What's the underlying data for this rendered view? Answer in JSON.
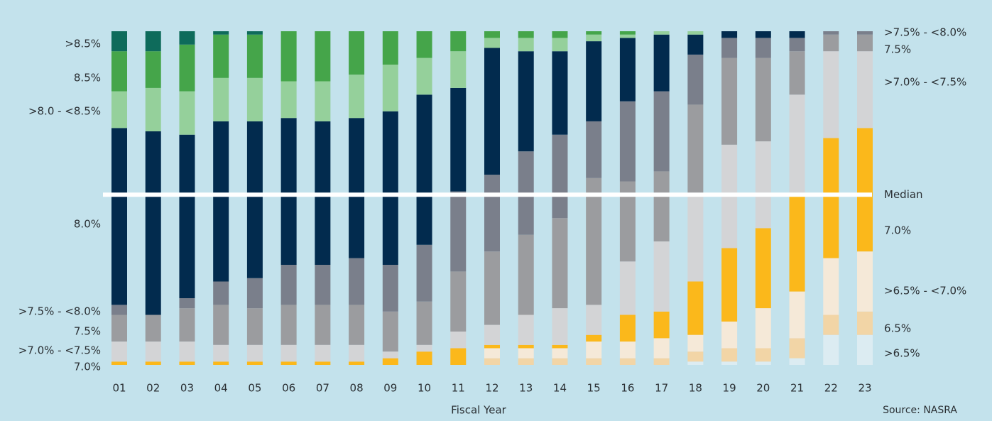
{
  "chart_data": {
    "type": "stacked_bar",
    "x_label": "Fiscal Year",
    "source": "Source: NASRA",
    "categories": [
      "01",
      "02",
      "03",
      "04",
      "05",
      "06",
      "07",
      "08",
      "09",
      "10",
      "11",
      "12",
      "13",
      "14",
      "15",
      "16",
      "17",
      "18",
      "19",
      "20",
      "21",
      "22",
      "23"
    ],
    "ylim": [
      0,
      100
    ],
    "median": {
      "label": "Median",
      "value": 51
    },
    "series": [
      {
        "name": ">6.5%",
        "color": "#dcecf2",
        "values": [
          0,
          0,
          0,
          0,
          0,
          0,
          0,
          0,
          0,
          0,
          0,
          0,
          0,
          0,
          0,
          0,
          0,
          1,
          1,
          1,
          2,
          9,
          9
        ]
      },
      {
        "name": "6.5%",
        "color": "#f2d5a6",
        "values": [
          0,
          0,
          0,
          0,
          0,
          0,
          0,
          0,
          0,
          0,
          0,
          2,
          2,
          2,
          2,
          2,
          2,
          3,
          4,
          4,
          6,
          6,
          7
        ]
      },
      {
        "name": ">6.5% - <7.0%",
        "color": "#f5e9d8",
        "values": [
          0,
          0,
          0,
          0,
          0,
          0,
          0,
          0,
          0,
          0,
          0,
          3,
          3,
          3,
          5,
          5,
          6,
          5,
          8,
          12,
          14,
          17,
          18
        ]
      },
      {
        "name": "7.0%",
        "color": "#fbb81b",
        "values": [
          1,
          1,
          1,
          1,
          1,
          1,
          1,
          1,
          2,
          4,
          5,
          1,
          1,
          1,
          2,
          8,
          8,
          16,
          22,
          24,
          29,
          36,
          37
        ]
      },
      {
        "name": ">7.0% - <7.5%",
        "color": "#d3d4d6",
        "values": [
          6,
          6,
          6,
          5,
          5,
          5,
          5,
          5,
          2,
          2,
          5,
          6,
          9,
          11,
          9,
          16,
          21,
          26,
          31,
          26,
          30,
          26,
          23
        ]
      },
      {
        "name": "7.5%",
        "color": "#9b9c9f",
        "values": [
          8,
          8,
          10,
          12,
          11,
          12,
          12,
          12,
          12,
          13,
          18,
          22,
          24,
          27,
          38,
          24,
          21,
          27,
          26,
          25,
          13,
          5,
          5
        ]
      },
      {
        "name": ">7.5% - <8.0%",
        "color": "#7a7f8b",
        "values": [
          3,
          0,
          3,
          7,
          9,
          12,
          12,
          14,
          14,
          17,
          24,
          23,
          25,
          25,
          17,
          24,
          24,
          15,
          6,
          6,
          4,
          1,
          1
        ]
      },
      {
        "name": "8.0%",
        "color": "#022b4e",
        "values": [
          53,
          55,
          49,
          48,
          47,
          44,
          43,
          42,
          46,
          45,
          31,
          38,
          30,
          25,
          24,
          19,
          17,
          6,
          2,
          2,
          2,
          0,
          0
        ]
      },
      {
        "name": ">8.0 - <8.5%",
        "color": "#95d09b",
        "values": [
          11,
          13,
          13,
          13,
          13,
          11,
          12,
          13,
          14,
          11,
          11,
          3,
          4,
          4,
          2,
          1,
          1,
          1,
          0,
          0,
          0,
          0,
          0
        ]
      },
      {
        "name": "8.5%",
        "color": "#45a54a",
        "values": [
          12,
          11,
          14,
          13,
          13,
          15,
          15,
          13,
          10,
          8,
          6,
          2,
          2,
          2,
          1,
          1,
          0,
          0,
          0,
          0,
          0,
          0,
          0
        ]
      },
      {
        "name": ">8.5%",
        "color": "#0e6b5b",
        "values": [
          6,
          6,
          4,
          1,
          1,
          0,
          0,
          0,
          0,
          0,
          0,
          0,
          0,
          0,
          0,
          0,
          0,
          0,
          0,
          0,
          0,
          0,
          0
        ]
      }
    ]
  }
}
